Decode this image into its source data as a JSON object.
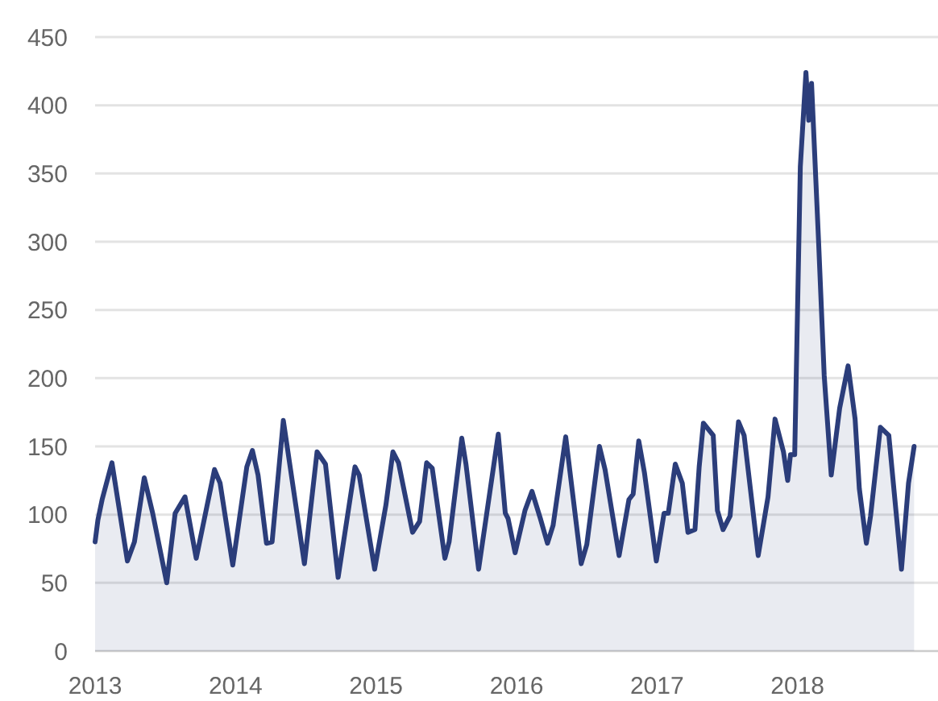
{
  "chart_data": {
    "type": "area",
    "xlim": [
      2013,
      2019
    ],
    "xticks": [
      2013,
      2014,
      2015,
      2016,
      2017,
      2018
    ],
    "ylim": [
      0,
      450
    ],
    "yticks": [
      0,
      50,
      100,
      150,
      200,
      250,
      300,
      350,
      400,
      450
    ],
    "grid": "y",
    "series": [
      {
        "color": "#2b3d7a",
        "x": [
          2013.0,
          2013.02,
          2013.05,
          2013.12,
          2013.23,
          2013.28,
          2013.35,
          2013.41,
          2013.51,
          2013.57,
          2013.64,
          2013.72,
          2013.85,
          2013.89,
          2013.98,
          2014.08,
          2014.12,
          2014.16,
          2014.22,
          2014.26,
          2014.34,
          2014.49,
          2014.58,
          2014.64,
          2014.73,
          2014.85,
          2014.88,
          2014.99,
          2015.07,
          2015.12,
          2015.16,
          2015.26,
          2015.31,
          2015.36,
          2015.4,
          2015.49,
          2015.52,
          2015.61,
          2015.64,
          2015.73,
          2015.87,
          2015.92,
          2015.94,
          2015.99,
          2016.06,
          2016.11,
          2016.17,
          2016.22,
          2016.26,
          2016.35,
          2016.46,
          2016.5,
          2016.59,
          2016.63,
          2016.73,
          2016.8,
          2016.83,
          2016.87,
          2016.91,
          2016.995,
          2017.05,
          2017.08,
          2017.13,
          2017.18,
          2017.22,
          2017.27,
          2017.3,
          2017.33,
          2017.4,
          2017.43,
          2017.47,
          2017.52,
          2017.58,
          2017.62,
          2017.72,
          2017.79,
          2017.84,
          2017.9,
          2017.93,
          2017.95,
          2017.98,
          2018.02,
          2018.06,
          2018.08,
          2018.1,
          2018.15,
          2018.19,
          2018.24,
          2018.3,
          2018.36,
          2018.41,
          2018.44,
          2018.49,
          2018.52,
          2018.59,
          2018.65,
          2018.74,
          2018.79,
          2018.83
        ],
        "values": [
          80,
          96,
          111,
          138,
          66,
          80,
          127,
          101,
          50,
          101,
          113,
          68,
          133,
          123,
          63,
          135,
          147,
          129,
          79,
          80,
          169,
          64,
          146,
          137,
          54,
          135,
          129,
          60,
          107,
          146,
          138,
          87,
          95,
          138,
          134,
          68,
          80,
          156,
          137,
          60,
          159,
          101,
          97,
          72,
          103,
          117,
          97,
          79,
          92,
          157,
          64,
          78,
          150,
          133,
          70,
          111,
          115,
          154,
          131,
          66,
          101,
          101,
          137,
          123,
          87,
          89,
          135,
          167,
          158,
          103,
          89,
          99,
          168,
          158,
          70,
          113,
          170,
          146,
          125,
          144,
          144,
          355,
          424,
          389,
          416,
          300,
          202,
          129,
          178,
          209,
          170,
          119,
          79,
          99,
          164,
          158,
          60,
          123,
          150
        ]
      }
    ]
  }
}
